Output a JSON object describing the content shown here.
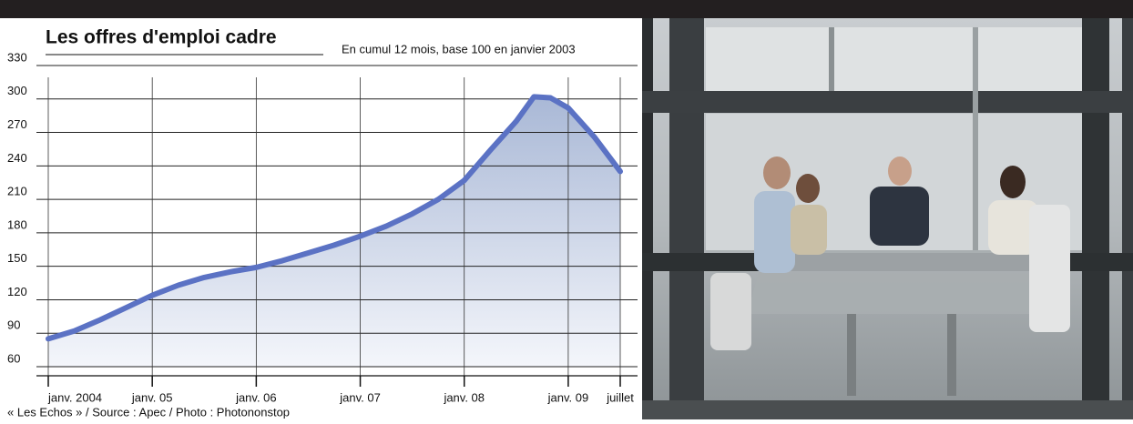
{
  "chart_data": {
    "type": "area",
    "title": "Les offres d'emploi cadre",
    "subtitle": "En cumul 12 mois, base 100 en janvier 2003",
    "source": "« Les Echos » / Source : Apec / Photo : Photononstop",
    "x": [
      2004,
      2004.25,
      2004.5,
      2004.75,
      2005,
      2005.25,
      2005.5,
      2005.75,
      2006,
      2006.25,
      2006.5,
      2006.75,
      2007,
      2007.25,
      2007.5,
      2007.75,
      2008,
      2008.25,
      2008.5,
      2008.67,
      2008.83,
      2009,
      2009.25,
      2009.5
    ],
    "series": [
      {
        "name": "Offres d'emploi cadre",
        "color": "#5b72c4",
        "values": [
          85,
          92,
          102,
          113,
          124,
          133,
          140,
          145,
          149,
          155,
          162,
          169,
          177,
          186,
          197,
          210,
          227,
          254,
          280,
          302,
          301,
          292,
          266,
          235
        ]
      }
    ],
    "xlim": [
      2004,
      2009.5
    ],
    "xticks": [
      {
        "value": 2004,
        "label": "janv. 2004"
      },
      {
        "value": 2005,
        "label": "janv. 05"
      },
      {
        "value": 2006,
        "label": "janv. 06"
      },
      {
        "value": 2007,
        "label": "janv. 07"
      },
      {
        "value": 2008,
        "label": "janv. 08"
      },
      {
        "value": 2009,
        "label": "janv. 09"
      },
      {
        "value": 2009.5,
        "label": "juillet"
      }
    ],
    "ylim": [
      60,
      330
    ],
    "yticks": [
      60,
      90,
      120,
      150,
      180,
      210,
      240,
      270,
      300,
      330
    ],
    "grid": true
  }
}
